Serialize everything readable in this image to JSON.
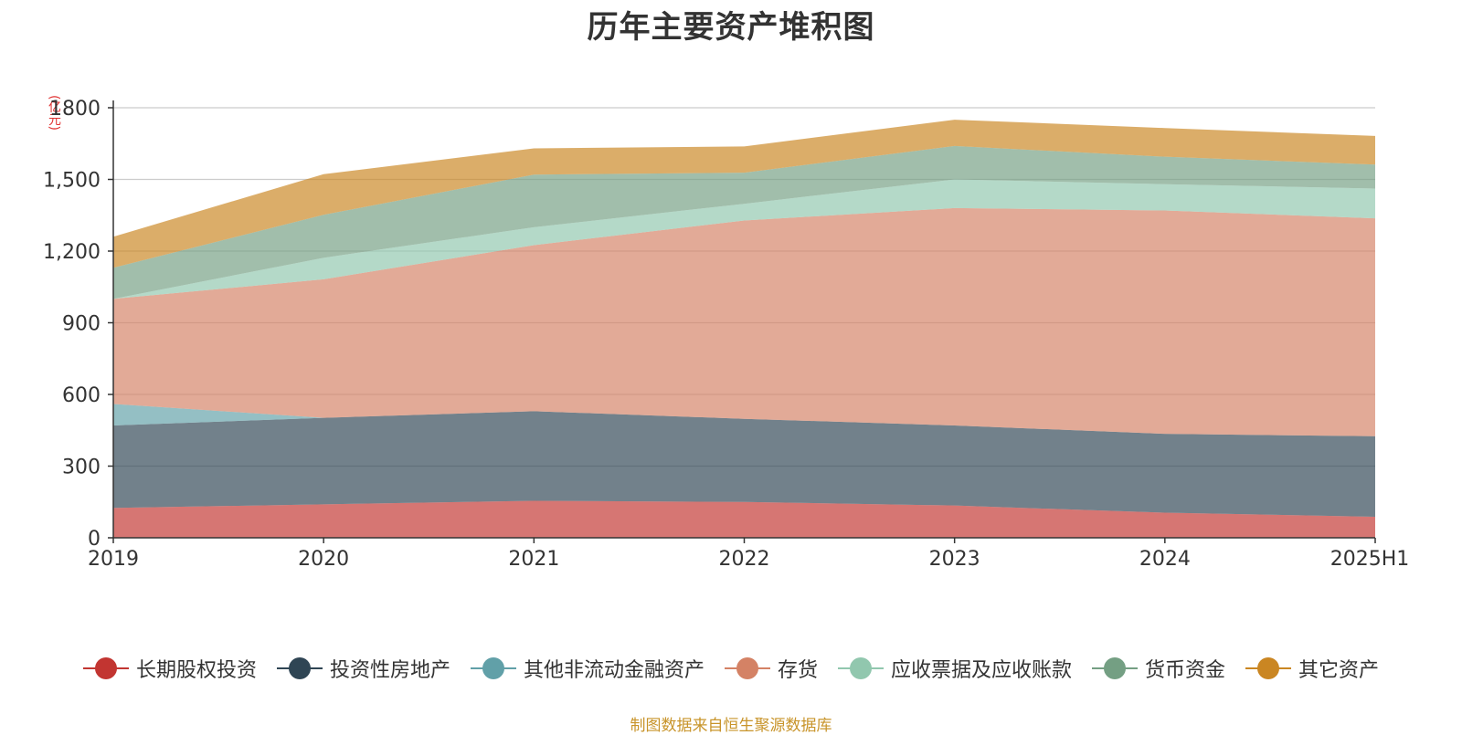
{
  "chart_data": {
    "type": "area",
    "stacked": true,
    "title": "历年主要资产堆积图",
    "ylabel": "(亿元)",
    "xlabel": "",
    "ylim": [
      0,
      1800
    ],
    "yticks": [
      0,
      300,
      600,
      900,
      1200,
      1500,
      1800
    ],
    "ytick_labels": [
      "0",
      "300",
      "600",
      "900",
      "1,200",
      "1,500",
      "1800"
    ],
    "categories": [
      "2019",
      "2020",
      "2021",
      "2022",
      "2023",
      "2024",
      "2025H1"
    ],
    "grid": true,
    "legend_position": "bottom",
    "series": [
      {
        "name": "长期股权投资",
        "color": "#c23531",
        "values": [
          125,
          140,
          155,
          150,
          135,
          105,
          88
        ]
      },
      {
        "name": "投资性房地产",
        "color": "#2f4554",
        "values": [
          345,
          362,
          375,
          348,
          335,
          330,
          337
        ]
      },
      {
        "name": "其他非流动金融资产",
        "color": "#61a0a8",
        "values": [
          90,
          0,
          0,
          0,
          0,
          0,
          0
        ]
      },
      {
        "name": "存货",
        "color": "#d48265",
        "values": [
          440,
          580,
          695,
          830,
          910,
          935,
          912
        ]
      },
      {
        "name": "应收票据及应收账款",
        "color": "#91c7ae",
        "values": [
          0,
          90,
          75,
          70,
          120,
          110,
          125
        ]
      },
      {
        "name": "货币资金",
        "color": "#749f83",
        "values": [
          130,
          180,
          220,
          130,
          140,
          115,
          100
        ]
      },
      {
        "name": "其它资产",
        "color": "#ca8622",
        "values": [
          130,
          170,
          110,
          110,
          110,
          120,
          120
        ]
      }
    ],
    "source_note": "制图数据来自恒生聚源数据库"
  }
}
